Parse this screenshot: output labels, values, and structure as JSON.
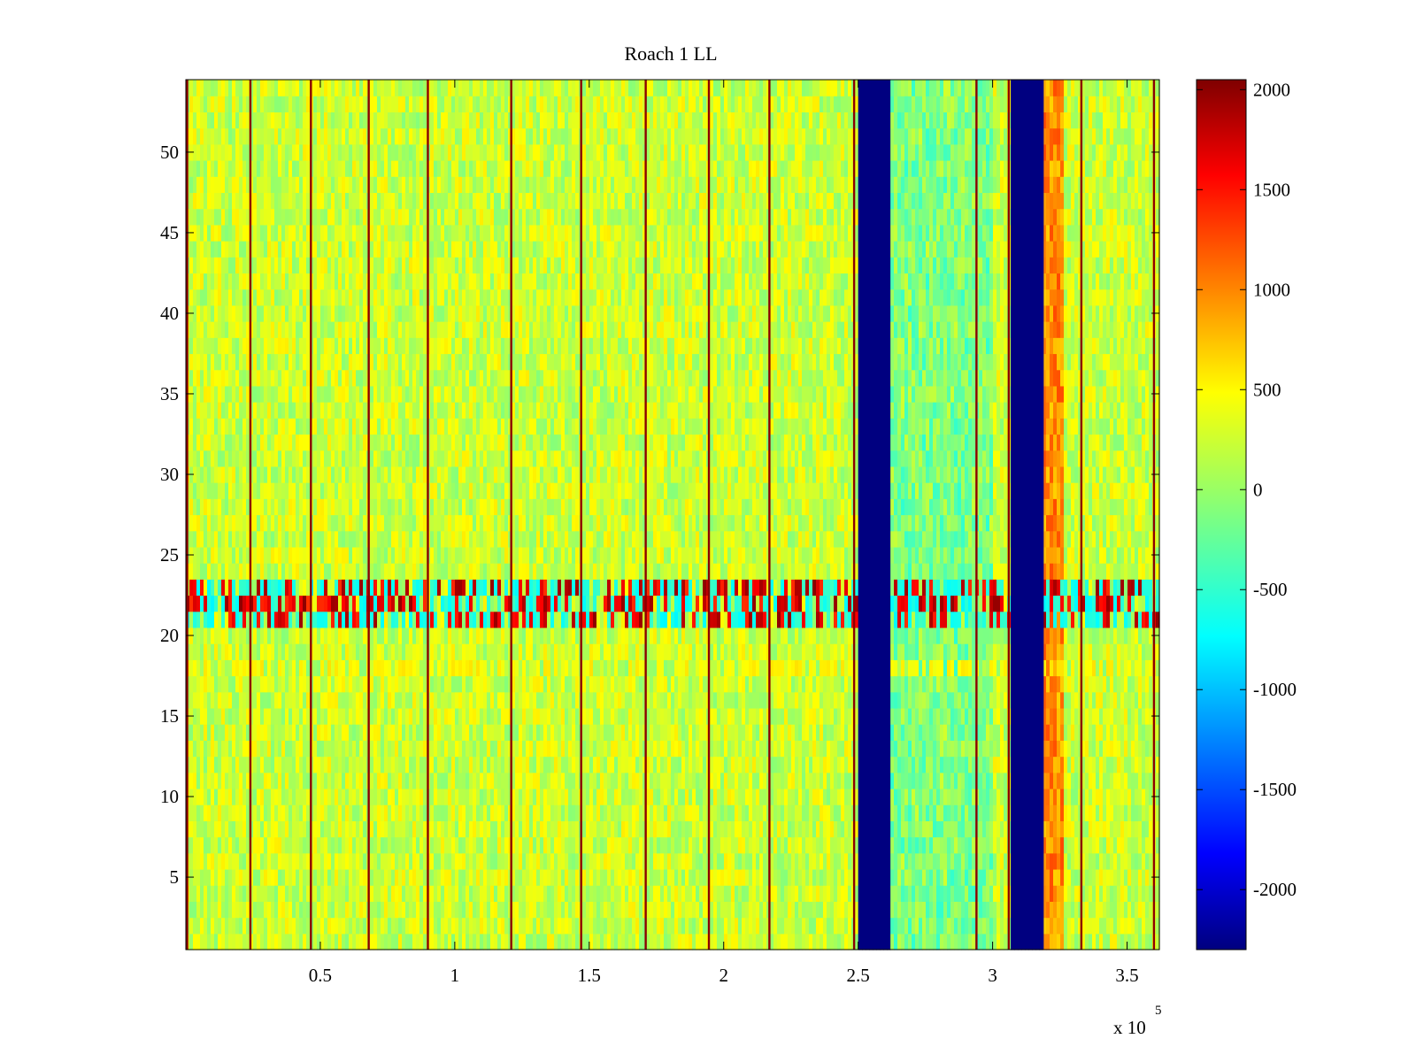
{
  "chart_data": {
    "type": "heatmap",
    "title": "Roach 1 LL",
    "xlabel": "",
    "ylabel": "",
    "x_multiplier_label": "x 10",
    "x_multiplier_exponent": "5",
    "xlim": [
      0,
      362000
    ],
    "ylim": [
      0.5,
      54.5
    ],
    "xticks": [
      {
        "value": 50000,
        "label": "0.5"
      },
      {
        "value": 100000,
        "label": "1"
      },
      {
        "value": 150000,
        "label": "1.5"
      },
      {
        "value": 200000,
        "label": "2"
      },
      {
        "value": 250000,
        "label": "2.5"
      },
      {
        "value": 300000,
        "label": "3"
      },
      {
        "value": 350000,
        "label": "3.5"
      }
    ],
    "yticks": [
      {
        "value": 5,
        "label": "5"
      },
      {
        "value": 10,
        "label": "10"
      },
      {
        "value": 15,
        "label": "15"
      },
      {
        "value": 20,
        "label": "20"
      },
      {
        "value": 25,
        "label": "25"
      },
      {
        "value": 30,
        "label": "30"
      },
      {
        "value": 35,
        "label": "35"
      },
      {
        "value": 40,
        "label": "40"
      },
      {
        "value": 45,
        "label": "45"
      },
      {
        "value": 50,
        "label": "50"
      }
    ],
    "colormap": "jet",
    "colorbar": {
      "clim": [
        -2300,
        2050
      ],
      "ticks": [
        {
          "value": 2000,
          "label": "2000"
        },
        {
          "value": 1500,
          "label": "1500"
        },
        {
          "value": 1000,
          "label": "1000"
        },
        {
          "value": 500,
          "label": "500"
        },
        {
          "value": 0,
          "label": "0"
        },
        {
          "value": -500,
          "label": "-500"
        },
        {
          "value": -1000,
          "label": "-1000"
        },
        {
          "value": -1500,
          "label": "-1500"
        },
        {
          "value": -2000,
          "label": "-2000"
        }
      ]
    },
    "rows": 54,
    "background_value": 200,
    "background_noise": 300,
    "spike_columns_x": [
      500,
      24000,
      46500,
      68000,
      90000,
      121000,
      147000,
      171000,
      194500,
      217000,
      248500,
      294000,
      306000,
      333000,
      360000
    ],
    "spike_value": 2000,
    "dead_bands": [
      {
        "x_start": 250000,
        "x_end": 262000,
        "value": -2300
      },
      {
        "x_start": 307000,
        "x_end": 319000,
        "value": -2300
      }
    ],
    "hot_band": {
      "x_start": 319000,
      "x_end": 326000,
      "value": 900
    },
    "low_band": {
      "x_start": 262000,
      "x_end": 300000,
      "value": -300
    },
    "noisy_rows": [
      {
        "row_start": 21,
        "row_end": 23,
        "pattern": "alternating high/low bursts"
      }
    ]
  }
}
